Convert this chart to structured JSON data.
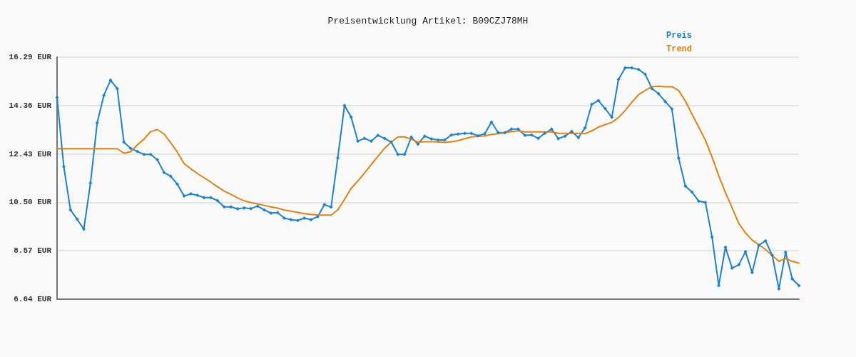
{
  "chart_data": {
    "type": "line",
    "title": "Preisentwicklung Artikel: B09CZJ78MH",
    "categories": [
      null,
      null,
      null,
      null,
      null,
      null,
      null,
      null,
      null,
      null,
      null,
      null,
      null,
      null,
      null,
      null,
      null,
      null,
      null,
      null,
      null,
      null,
      null,
      null,
      null,
      null,
      null,
      null,
      null,
      null,
      null,
      null,
      null,
      null,
      null,
      null,
      null,
      null,
      null,
      null,
      null,
      null,
      null,
      null,
      null,
      null,
      null,
      null,
      null,
      null,
      null,
      null,
      null,
      null,
      null,
      null,
      null,
      null,
      null,
      null,
      null,
      null,
      null,
      null,
      null,
      null,
      null,
      null,
      null,
      null,
      null,
      null,
      null,
      null,
      null,
      null,
      null,
      null,
      null,
      null,
      null,
      null,
      null,
      null,
      null,
      null,
      null,
      null,
      null,
      null,
      null,
      null,
      null,
      null,
      null,
      null,
      null,
      null,
      null,
      null,
      null,
      null,
      null,
      null,
      null,
      null,
      null,
      null,
      null,
      null,
      null,
      null
    ],
    "series": [
      {
        "name": "Preis",
        "color": "#1a82d0",
        "marker": "diamond",
        "values": [
          14.68,
          11.93,
          10.2,
          9.83,
          9.43,
          11.27,
          13.67,
          14.77,
          15.37,
          15.04,
          12.9,
          12.65,
          12.53,
          12.41,
          12.41,
          12.2,
          11.69,
          11.54,
          11.22,
          10.75,
          10.84,
          10.78,
          10.69,
          10.69,
          10.57,
          10.32,
          10.32,
          10.24,
          10.28,
          10.25,
          10.35,
          10.2,
          10.07,
          10.09,
          9.87,
          9.81,
          9.78,
          9.87,
          9.81,
          9.93,
          10.41,
          10.31,
          12.27,
          14.36,
          13.9,
          12.94,
          13.05,
          12.94,
          13.17,
          13.05,
          12.9,
          12.41,
          12.41,
          13.1,
          12.82,
          13.14,
          13.03,
          12.99,
          12.99,
          13.19,
          13.22,
          13.25,
          13.25,
          13.15,
          13.24,
          13.7,
          13.28,
          13.28,
          13.42,
          13.42,
          13.17,
          13.19,
          13.05,
          13.26,
          13.42,
          13.04,
          13.14,
          13.33,
          13.08,
          13.47,
          14.41,
          14.56,
          14.24,
          13.89,
          15.4,
          15.86,
          15.86,
          15.8,
          15.61,
          15.04,
          14.83,
          14.52,
          14.22,
          12.27,
          11.15,
          10.91,
          10.55,
          10.5,
          9.12,
          7.18,
          8.71,
          7.88,
          8.01,
          8.53,
          7.7,
          8.79,
          8.97,
          8.39,
          7.05,
          8.51,
          7.45,
          7.18
        ]
      },
      {
        "name": "Trend",
        "color": "#e0820f",
        "marker": "none",
        "values": [
          12.64,
          12.64,
          12.64,
          12.64,
          12.64,
          12.64,
          12.64,
          12.64,
          12.64,
          12.64,
          12.46,
          12.52,
          12.79,
          13.02,
          13.32,
          13.4,
          13.23,
          12.88,
          12.5,
          12.05,
          11.84,
          11.65,
          11.48,
          11.31,
          11.12,
          10.95,
          10.82,
          10.68,
          10.56,
          10.49,
          10.44,
          10.38,
          10.32,
          10.27,
          10.19,
          10.15,
          10.1,
          10.05,
          10.02,
          9.99,
          9.99,
          9.99,
          10.2,
          10.61,
          11.06,
          11.35,
          11.67,
          12.0,
          12.33,
          12.66,
          12.9,
          13.11,
          13.11,
          13.02,
          12.9,
          12.92,
          12.92,
          12.91,
          12.89,
          12.92,
          12.96,
          13.04,
          13.11,
          13.13,
          13.15,
          13.21,
          13.24,
          13.27,
          13.32,
          13.35,
          13.31,
          13.31,
          13.31,
          13.31,
          13.31,
          13.25,
          13.25,
          13.25,
          13.25,
          13.24,
          13.35,
          13.5,
          13.6,
          13.69,
          13.88,
          14.16,
          14.49,
          14.79,
          14.96,
          15.11,
          15.13,
          15.11,
          15.11,
          14.96,
          14.54,
          14.02,
          13.5,
          12.98,
          12.31,
          11.56,
          10.89,
          10.28,
          9.66,
          9.28,
          9.0,
          8.81,
          8.62,
          8.38,
          8.15,
          8.26,
          8.15,
          8.08
        ]
      }
    ],
    "ylim": [
      6.64,
      16.29
    ],
    "yticks": [
      {
        "value": 6.64,
        "label": "6.64 EUR"
      },
      {
        "value": 8.57,
        "label": "8.57 EUR"
      },
      {
        "value": 10.5,
        "label": "10.50 EUR"
      },
      {
        "value": 12.43,
        "label": "12.43 EUR"
      },
      {
        "value": 14.36,
        "label": "14.36 EUR"
      },
      {
        "value": 16.29,
        "label": "16.29 EUR"
      }
    ],
    "grid": "y",
    "legend": "top right",
    "line_style": "solid"
  }
}
